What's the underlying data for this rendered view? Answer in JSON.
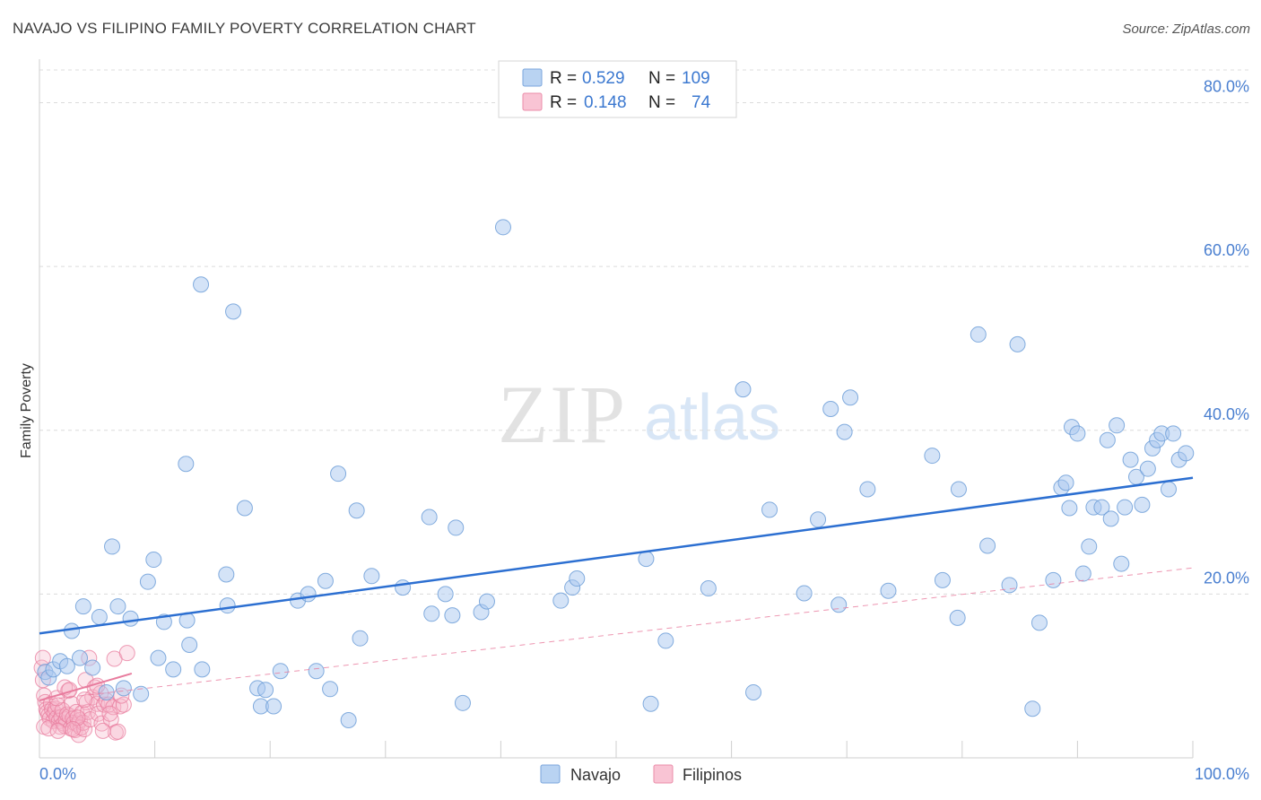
{
  "title": "NAVAJO VS FILIPINO FAMILY POVERTY CORRELATION CHART",
  "source": "Source: ZipAtlas.com",
  "watermark": {
    "zip": "ZIP",
    "atlas": "atlas"
  },
  "colors": {
    "navajo_fill": "#a9c8ef",
    "navajo_stroke": "#6f9fd8",
    "navajo_line": "#2c6fd1",
    "filipino_fill": "#f6b8cb",
    "filipino_stroke": "#e87c9e",
    "filipino_line": "#e87c9e",
    "axis_text": "#4a7fd0",
    "grid": "#dcdcdc"
  },
  "legend": {
    "rows": [
      {
        "r_label": "R =",
        "r_value": "0.529",
        "n_label": "N =",
        "n_value": "109"
      },
      {
        "r_label": "R =",
        "r_value": "0.148",
        "n_label": "N =",
        "n_value": "74"
      }
    ]
  },
  "bottom_legend": [
    "Navajo",
    "Filipinos"
  ],
  "chart_data": {
    "type": "scatter",
    "title": "NAVAJO VS FILIPINO FAMILY POVERTY CORRELATION CHART",
    "xlabel": "",
    "ylabel": "Family Poverty",
    "xlim": [
      0,
      100
    ],
    "ylim": [
      0,
      84
    ],
    "x_tick_labels": [
      "0.0%",
      "100.0%"
    ],
    "y_ticks": [
      20,
      40,
      60,
      80
    ],
    "y_tick_labels": [
      "20.0%",
      "40.0%",
      "60.0%",
      "80.0%"
    ],
    "series": [
      {
        "name": "Navajo",
        "r": 0.529,
        "n": 109,
        "trend": {
          "x": [
            0,
            100
          ],
          "y": [
            15.2,
            34.2
          ]
        },
        "points": [
          [
            0.5,
            10.5
          ],
          [
            0.8,
            9.8
          ],
          [
            1.2,
            10.8
          ],
          [
            1.8,
            11.8
          ],
          [
            2.4,
            11.2
          ],
          [
            2.8,
            15.5
          ],
          [
            3.5,
            12.2
          ],
          [
            3.8,
            18.5
          ],
          [
            4.6,
            11.0
          ],
          [
            5.2,
            17.2
          ],
          [
            5.8,
            8.0
          ],
          [
            6.3,
            25.8
          ],
          [
            6.8,
            18.5
          ],
          [
            7.3,
            8.5
          ],
          [
            7.9,
            17.0
          ],
          [
            8.8,
            7.8
          ],
          [
            9.4,
            21.5
          ],
          [
            9.9,
            24.2
          ],
          [
            10.3,
            12.2
          ],
          [
            10.8,
            16.6
          ],
          [
            11.6,
            10.8
          ],
          [
            12.8,
            16.8
          ],
          [
            12.7,
            35.9
          ],
          [
            13.0,
            13.8
          ],
          [
            14.0,
            57.8
          ],
          [
            14.1,
            10.8
          ],
          [
            16.2,
            22.4
          ],
          [
            16.3,
            18.6
          ],
          [
            16.8,
            54.5
          ],
          [
            17.8,
            30.5
          ],
          [
            18.9,
            8.5
          ],
          [
            19.2,
            6.3
          ],
          [
            19.6,
            8.3
          ],
          [
            20.3,
            6.3
          ],
          [
            20.9,
            10.6
          ],
          [
            22.4,
            19.2
          ],
          [
            23.3,
            20.0
          ],
          [
            24.0,
            10.6
          ],
          [
            24.8,
            21.6
          ],
          [
            25.2,
            8.4
          ],
          [
            25.9,
            34.7
          ],
          [
            26.8,
            4.6
          ],
          [
            27.5,
            30.2
          ],
          [
            27.8,
            14.6
          ],
          [
            28.8,
            22.2
          ],
          [
            31.5,
            20.8
          ],
          [
            33.8,
            29.4
          ],
          [
            34.0,
            17.6
          ],
          [
            35.2,
            20.0
          ],
          [
            35.8,
            17.4
          ],
          [
            36.1,
            28.1
          ],
          [
            36.7,
            6.7
          ],
          [
            38.3,
            17.8
          ],
          [
            38.8,
            19.1
          ],
          [
            40.2,
            64.8
          ],
          [
            45.2,
            19.2
          ],
          [
            46.2,
            20.8
          ],
          [
            46.6,
            21.9
          ],
          [
            52.6,
            24.3
          ],
          [
            53.0,
            6.6
          ],
          [
            54.3,
            14.3
          ],
          [
            58.0,
            20.7
          ],
          [
            61.0,
            45.0
          ],
          [
            61.9,
            8.0
          ],
          [
            63.3,
            30.3
          ],
          [
            66.3,
            20.1
          ],
          [
            67.5,
            29.1
          ],
          [
            68.6,
            42.6
          ],
          [
            69.3,
            18.7
          ],
          [
            69.8,
            39.8
          ],
          [
            70.3,
            44.0
          ],
          [
            71.8,
            32.8
          ],
          [
            73.6,
            20.4
          ],
          [
            77.4,
            36.9
          ],
          [
            78.3,
            21.7
          ],
          [
            79.6,
            17.1
          ],
          [
            79.7,
            32.8
          ],
          [
            81.4,
            51.7
          ],
          [
            82.2,
            25.9
          ],
          [
            84.1,
            21.1
          ],
          [
            84.8,
            50.5
          ],
          [
            86.1,
            6.0
          ],
          [
            86.7,
            16.5
          ],
          [
            87.9,
            21.7
          ],
          [
            88.6,
            33.0
          ],
          [
            89.0,
            33.6
          ],
          [
            89.3,
            30.5
          ],
          [
            89.5,
            40.4
          ],
          [
            90.0,
            39.6
          ],
          [
            90.5,
            22.5
          ],
          [
            91.0,
            25.8
          ],
          [
            91.4,
            30.6
          ],
          [
            92.1,
            30.6
          ],
          [
            92.6,
            38.8
          ],
          [
            92.9,
            29.2
          ],
          [
            93.4,
            40.6
          ],
          [
            93.8,
            23.7
          ],
          [
            94.1,
            30.6
          ],
          [
            94.6,
            36.4
          ],
          [
            95.1,
            34.3
          ],
          [
            95.6,
            30.9
          ],
          [
            96.1,
            35.3
          ],
          [
            96.5,
            37.8
          ],
          [
            96.9,
            38.8
          ],
          [
            97.3,
            39.6
          ],
          [
            97.9,
            32.8
          ],
          [
            98.3,
            39.6
          ],
          [
            98.8,
            36.4
          ],
          [
            99.4,
            37.2
          ]
        ]
      },
      {
        "name": "Filipinos",
        "r": 0.148,
        "n": 74,
        "trend": {
          "x": [
            0,
            8
          ],
          "y": [
            7.0,
            10.3
          ]
        },
        "trend_dashed": {
          "x": [
            0,
            100
          ],
          "y": [
            7.0,
            23.2
          ]
        },
        "points": [
          [
            0.2,
            11.0
          ],
          [
            0.3,
            9.5
          ],
          [
            0.4,
            7.6
          ],
          [
            0.5,
            6.8
          ],
          [
            0.6,
            5.9
          ],
          [
            0.7,
            5.6
          ],
          [
            0.8,
            5.2
          ],
          [
            0.9,
            4.8
          ],
          [
            1.0,
            6.6
          ],
          [
            1.1,
            5.9
          ],
          [
            1.2,
            4.5
          ],
          [
            1.3,
            5.5
          ],
          [
            1.4,
            6.0
          ],
          [
            1.5,
            4.9
          ],
          [
            1.6,
            6.4
          ],
          [
            1.7,
            4.5
          ],
          [
            1.8,
            3.8
          ],
          [
            1.9,
            5.0
          ],
          [
            2.0,
            5.8
          ],
          [
            2.1,
            4.2
          ],
          [
            2.2,
            3.9
          ],
          [
            2.3,
            4.7
          ],
          [
            2.4,
            5.3
          ],
          [
            2.5,
            8.2
          ],
          [
            2.6,
            5.1
          ],
          [
            2.7,
            3.6
          ],
          [
            2.8,
            6.6
          ],
          [
            2.9,
            4.8
          ],
          [
            3.0,
            4.3
          ],
          [
            3.1,
            3.4
          ],
          [
            3.2,
            5.6
          ],
          [
            3.3,
            4.1
          ],
          [
            3.4,
            2.8
          ],
          [
            3.5,
            4.6
          ],
          [
            3.6,
            3.7
          ],
          [
            3.7,
            5.5
          ],
          [
            3.8,
            4.3
          ],
          [
            3.9,
            3.5
          ],
          [
            4.0,
            9.5
          ],
          [
            4.1,
            6.8
          ],
          [
            4.2,
            5.6
          ],
          [
            4.3,
            12.2
          ],
          [
            4.4,
            4.7
          ],
          [
            4.6,
            7.4
          ],
          [
            4.8,
            8.6
          ],
          [
            5.0,
            6.6
          ],
          [
            5.1,
            5.4
          ],
          [
            5.3,
            7.9
          ],
          [
            5.4,
            4.2
          ],
          [
            5.6,
            6.5
          ],
          [
            5.8,
            7.0
          ],
          [
            6.0,
            6.5
          ],
          [
            6.2,
            4.7
          ],
          [
            6.4,
            6.2
          ],
          [
            6.5,
            12.1
          ],
          [
            6.6,
            3.1
          ],
          [
            6.8,
            3.2
          ],
          [
            7.0,
            6.3
          ],
          [
            7.3,
            6.5
          ],
          [
            7.6,
            12.8
          ],
          [
            0.4,
            3.8
          ],
          [
            0.8,
            3.6
          ],
          [
            1.5,
            7.3
          ],
          [
            2.2,
            8.6
          ],
          [
            2.6,
            8.3
          ],
          [
            3.3,
            4.9
          ],
          [
            3.9,
            7.1
          ],
          [
            5.0,
            8.8
          ],
          [
            5.5,
            3.3
          ],
          [
            6.1,
            5.4
          ],
          [
            7.1,
            7.6
          ],
          [
            0.3,
            12.2
          ],
          [
            1.6,
            3.3
          ],
          [
            2.9,
            3.5
          ]
        ]
      }
    ]
  }
}
